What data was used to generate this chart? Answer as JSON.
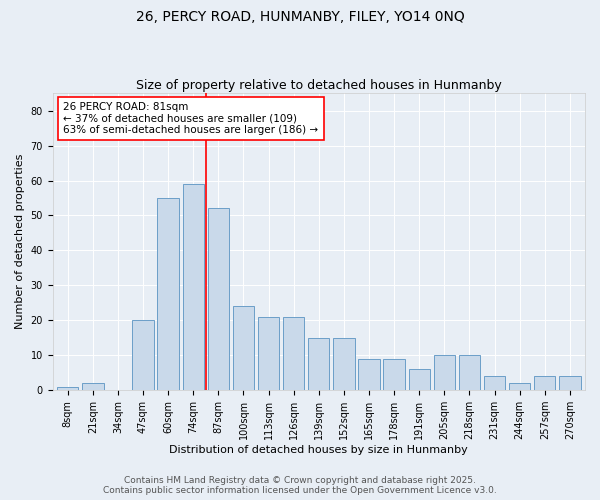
{
  "title_line1": "26, PERCY ROAD, HUNMANBY, FILEY, YO14 0NQ",
  "title_line2": "Size of property relative to detached houses in Hunmanby",
  "xlabel": "Distribution of detached houses by size in Hunmanby",
  "ylabel": "Number of detached properties",
  "categories": [
    "8sqm",
    "21sqm",
    "34sqm",
    "47sqm",
    "60sqm",
    "74sqm",
    "87sqm",
    "100sqm",
    "113sqm",
    "126sqm",
    "139sqm",
    "152sqm",
    "165sqm",
    "178sqm",
    "191sqm",
    "205sqm",
    "218sqm",
    "231sqm",
    "244sqm",
    "257sqm",
    "270sqm"
  ],
  "values": [
    1,
    2,
    0,
    20,
    55,
    59,
    52,
    24,
    21,
    21,
    15,
    15,
    9,
    9,
    6,
    10,
    10,
    4,
    2,
    4,
    4
  ],
  "bar_color": "#c9d9ea",
  "bar_edge_color": "#6b9ec8",
  "ref_line_color": "red",
  "ref_line_index": 5.5,
  "annotation_text": "26 PERCY ROAD: 81sqm\n← 37% of detached houses are smaller (109)\n63% of semi-detached houses are larger (186) →",
  "annotation_box_color": "white",
  "annotation_box_edge": "red",
  "ylim": [
    0,
    85
  ],
  "yticks": [
    0,
    10,
    20,
    30,
    40,
    50,
    60,
    70,
    80
  ],
  "background_color": "#e8eef5",
  "plot_background": "#e8eef5",
  "footer_line1": "Contains HM Land Registry data © Crown copyright and database right 2025.",
  "footer_line2": "Contains public sector information licensed under the Open Government Licence v3.0.",
  "title_fontsize": 10,
  "subtitle_fontsize": 9,
  "axis_label_fontsize": 8,
  "tick_fontsize": 7,
  "annotation_fontsize": 7.5,
  "footer_fontsize": 6.5
}
